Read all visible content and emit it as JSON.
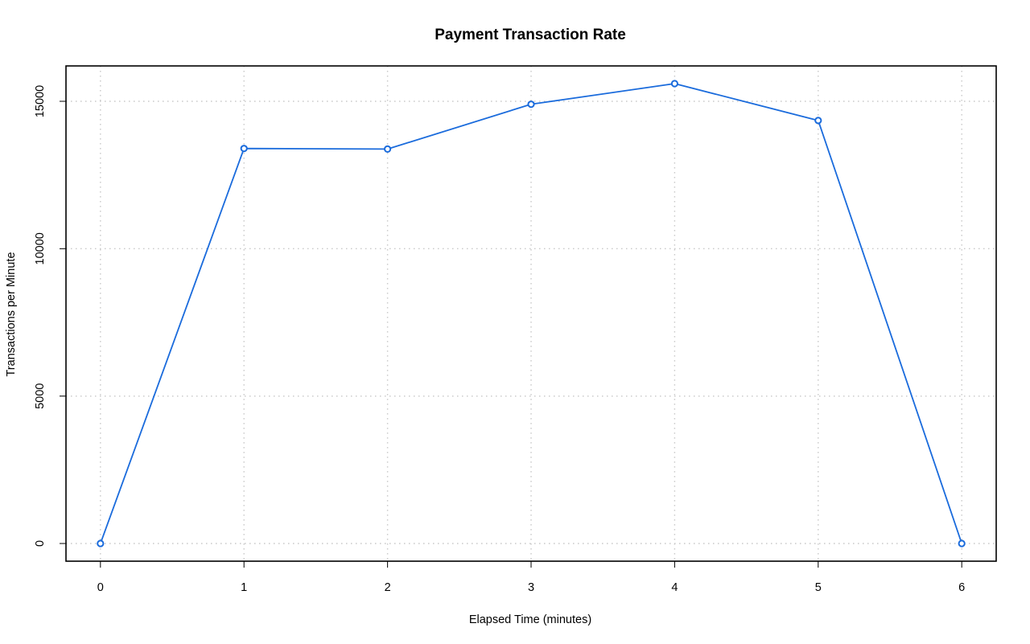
{
  "chart_data": {
    "type": "line",
    "title": "Payment Transaction Rate",
    "xlabel": "Elapsed Time (minutes)",
    "ylabel": "Transactions per Minute",
    "x": [
      0,
      1,
      2,
      3,
      4,
      5,
      6
    ],
    "series": [
      {
        "values": [
          0,
          13400,
          13380,
          14900,
          15600,
          14350,
          0
        ]
      }
    ],
    "xlim": [
      -0.24,
      6.24
    ],
    "ylim": [
      -600,
      16200
    ],
    "xticks": [
      0,
      1,
      2,
      3,
      4,
      5,
      6
    ],
    "yticks": [
      0,
      5000,
      10000,
      15000
    ],
    "xtick_labels": [
      "0",
      "1",
      "2",
      "3",
      "4",
      "5",
      "6"
    ],
    "ytick_labels": [
      "0",
      "5000",
      "10000",
      "15000"
    ],
    "grid": true,
    "legend": "none",
    "colors": {
      "series": "#1a6bdc"
    }
  }
}
